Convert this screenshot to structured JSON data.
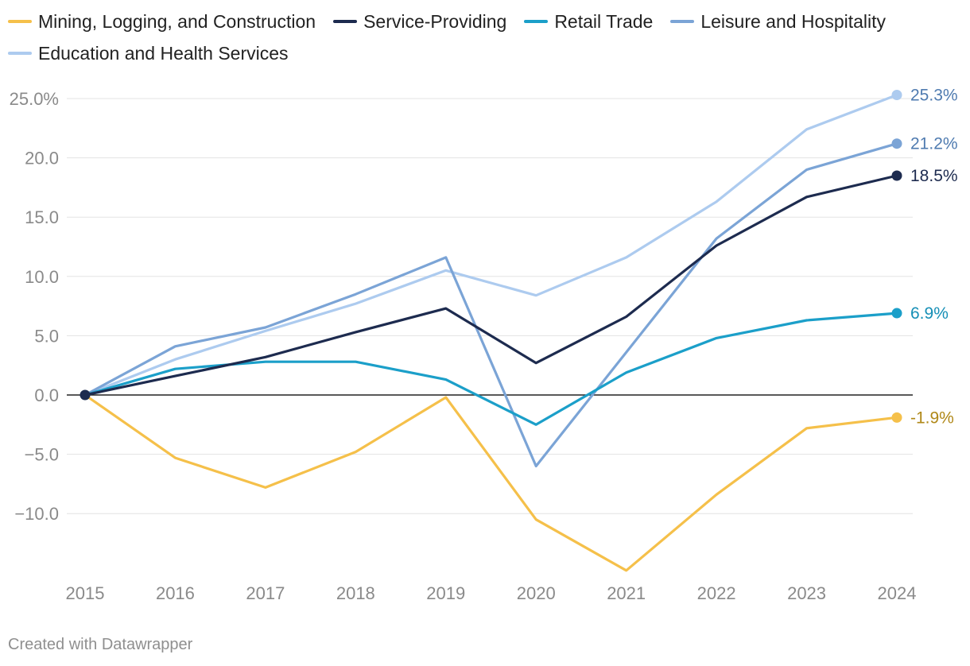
{
  "chart_data": {
    "type": "line",
    "title": "",
    "xlabel": "",
    "ylabel": "",
    "x": [
      2015,
      2016,
      2017,
      2018,
      2019,
      2020,
      2021,
      2022,
      2023,
      2024
    ],
    "x_tick_labels": [
      "2015",
      "2016",
      "2017",
      "2018",
      "2019",
      "2020",
      "2021",
      "2022",
      "2023",
      "2024"
    ],
    "y_ticks": [
      25,
      20,
      15,
      10,
      5,
      0,
      -5,
      -10
    ],
    "y_tick_labels": [
      "25.0%",
      "20.0",
      "15.0",
      "10.0",
      "5.0",
      "0.0",
      "−5.0",
      "−10.0"
    ],
    "ylim": [
      -15.2,
      25.8
    ],
    "grid": true,
    "legend_position": "top",
    "series": [
      {
        "name": "Mining, Logging, and Construction",
        "color": "#f5c04a",
        "label_color": "#b08818",
        "end_label": "-1.9%",
        "values": [
          0,
          -5.3,
          -7.8,
          -4.8,
          -0.2,
          -10.5,
          -14.8,
          -8.4,
          -2.8,
          -1.9
        ]
      },
      {
        "name": "Service-Providing",
        "color": "#1d2b4f",
        "label_color": "#1d2b4f",
        "end_label": "18.5%",
        "values": [
          0,
          1.6,
          3.2,
          5.3,
          7.3,
          2.7,
          6.6,
          12.6,
          16.7,
          18.5
        ]
      },
      {
        "name": "Retail Trade",
        "color": "#1b9fc9",
        "label_color": "#168fb6",
        "end_label": "6.9%",
        "values": [
          0,
          2.2,
          2.8,
          2.8,
          1.3,
          -2.5,
          1.9,
          4.8,
          6.3,
          6.9
        ]
      },
      {
        "name": "Leisure and Hospitality",
        "color": "#7ba4d6",
        "label_color": "#4f7bb0",
        "end_label": "21.2%",
        "values": [
          0,
          4.1,
          5.7,
          8.5,
          11.6,
          -6.0,
          3.6,
          13.2,
          19.0,
          21.2
        ]
      },
      {
        "name": "Education and Health Services",
        "color": "#adcbef",
        "label_color": "#4f7bb0",
        "end_label": "25.3%",
        "values": [
          0,
          3.0,
          5.4,
          7.7,
          10.5,
          8.4,
          11.6,
          16.3,
          22.4,
          25.3
        ]
      }
    ]
  },
  "footer": {
    "credit": "Created with Datawrapper"
  }
}
